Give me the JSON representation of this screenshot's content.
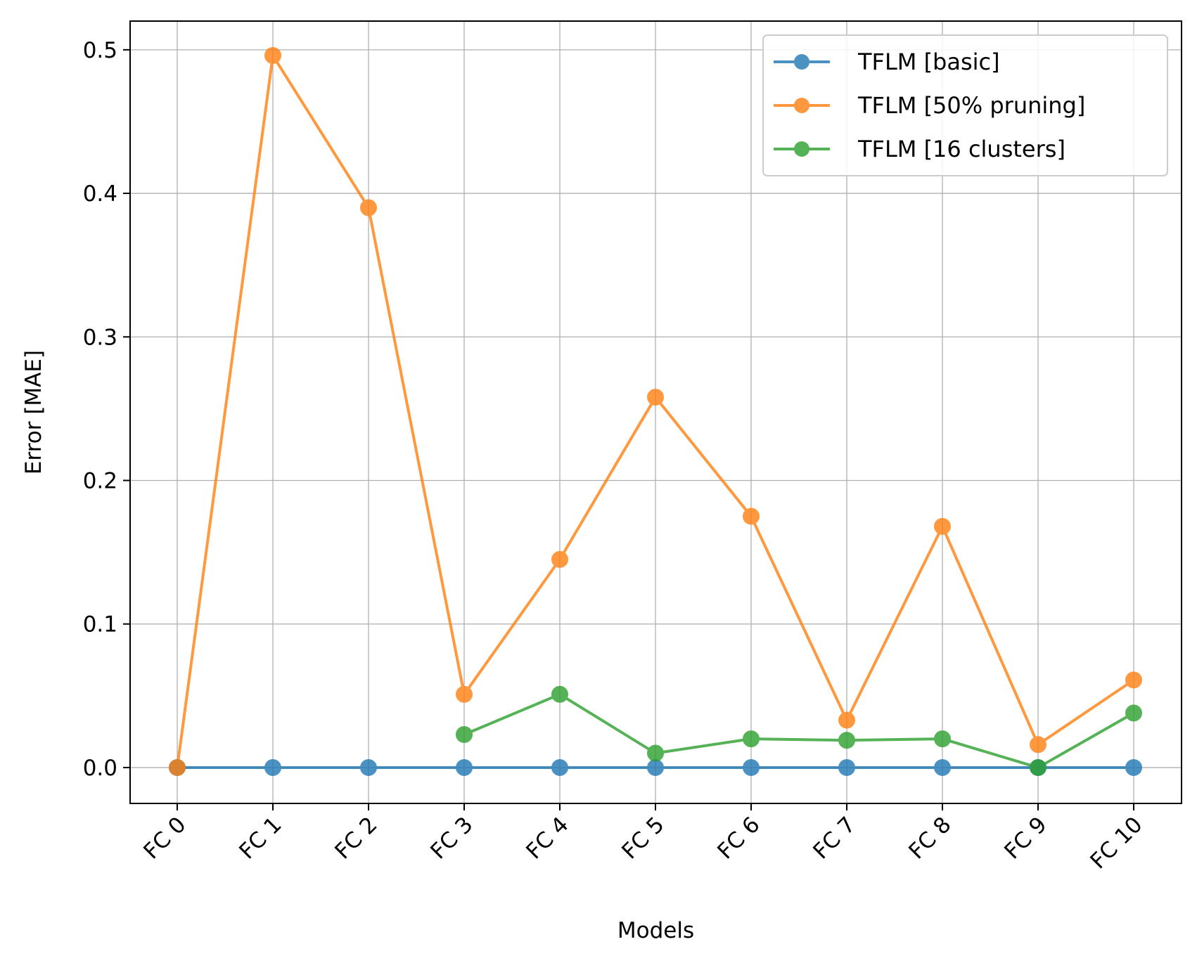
{
  "chart_data": {
    "type": "line",
    "title": "",
    "xlabel": "Models",
    "ylabel": "Error [MAE]",
    "categories": [
      "FC 0",
      "FC 1",
      "FC 2",
      "FC 3",
      "FC 4",
      "FC 5",
      "FC 6",
      "FC 7",
      "FC 8",
      "FC 9",
      "FC 10"
    ],
    "ylim": [
      -0.025,
      0.52
    ],
    "yticks": [
      0.0,
      0.1,
      0.2,
      0.3,
      0.4,
      0.5
    ],
    "ytick_labels": [
      "0.0",
      "0.1",
      "0.2",
      "0.3",
      "0.4",
      "0.5"
    ],
    "grid": true,
    "legend_position": "top-right",
    "series": [
      {
        "name": "TFLM [basic]",
        "color": "#1f77b4",
        "marker": "circle",
        "values": [
          0,
          0,
          0,
          0,
          0,
          0,
          0,
          0,
          0,
          0,
          0
        ]
      },
      {
        "name": "TFLM [50% pruning]",
        "color": "#ff7f0e",
        "marker": "circle",
        "values": [
          0,
          0.496,
          0.39,
          0.051,
          0.145,
          0.258,
          0.175,
          0.033,
          0.168,
          0.016,
          0.061
        ]
      },
      {
        "name": "TFLM [16 clusters]",
        "color": "#2ca02c",
        "marker": "circle",
        "values": [
          null,
          null,
          null,
          0.023,
          0.051,
          0.01,
          0.02,
          0.019,
          0.02,
          0.0,
          0.038
        ]
      }
    ]
  }
}
